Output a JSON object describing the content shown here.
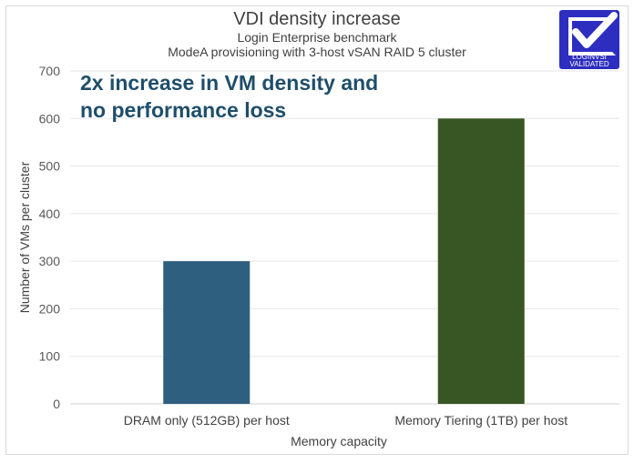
{
  "chart_data": {
    "type": "bar",
    "title": "VDI density increase",
    "subtitle": [
      "Login Enterprise benchmark",
      "ModeA provisioning with 3-host vSAN RAID 5 cluster"
    ],
    "categories": [
      "DRAM only (512GB) per host",
      "Memory Tiering (1TB) per host"
    ],
    "values": [
      300,
      600
    ],
    "colors": [
      "#2e5f7f",
      "#375623"
    ],
    "xlabel": "Memory capacity",
    "ylabel": "Number of VMs per cluster",
    "ylim": [
      0,
      700
    ],
    "yticks": [
      0,
      100,
      200,
      300,
      400,
      500,
      600,
      700
    ],
    "grid": true,
    "annotation": [
      "2x increase in VM density and",
      "no performance loss"
    ]
  },
  "logo": {
    "text1": "LOGINVSI",
    "text2": "VALIDATED",
    "color": "#2d2dc0"
  }
}
